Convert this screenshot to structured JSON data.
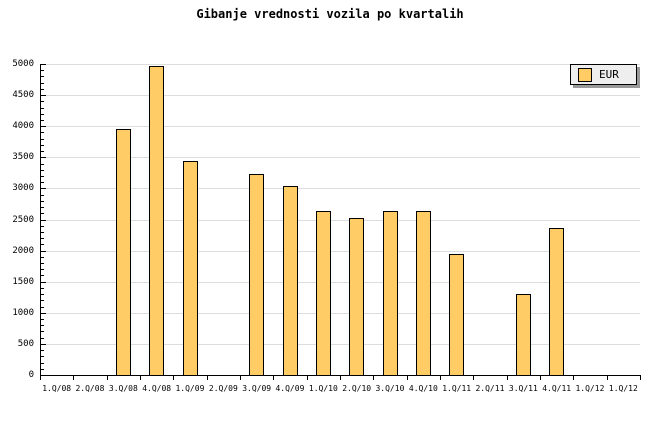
{
  "title": "Gibanje vrednosti vozila po kvartalih",
  "legend": {
    "label": "EUR"
  },
  "colors": {
    "background": "#FFFFFF",
    "bar_fill": "#FFCC66",
    "bar_border": "#000000",
    "gridline": "#DDDDDD",
    "axis": "#000000",
    "legend_bg": "#EEEEEE",
    "legend_shadow": "#999999",
    "text": "#000000"
  },
  "chart_data": {
    "type": "bar",
    "title": "Gibanje vrednosti vozila po kvartalih",
    "categories": [
      "1.Q/08",
      "2.Q/08",
      "3.Q/08",
      "4.Q/08",
      "1.Q/09",
      "2.Q/09",
      "3.Q/09",
      "4.Q/09",
      "1.Q/10",
      "2.Q/10",
      "3.Q/10",
      "4.Q/10",
      "1.Q/11",
      "2.Q/11",
      "3.Q/11",
      "4.Q/11",
      "1.Q/12",
      "1.Q/12"
    ],
    "series": [
      {
        "name": "EUR",
        "values": [
          null,
          null,
          3950,
          4960,
          3440,
          null,
          3230,
          3040,
          2640,
          2520,
          2640,
          2640,
          1950,
          null,
          1300,
          2360,
          null,
          null
        ]
      }
    ],
    "ylim": [
      0,
      5000
    ],
    "y_tick_labels": [
      "0",
      "500",
      "1000",
      "1500",
      "2000",
      "2500",
      "3000",
      "3500",
      "4000",
      "4500",
      "5000"
    ],
    "y_minor_step": 100,
    "grid": true,
    "legend_position": "top-right",
    "xlabel": "",
    "ylabel": ""
  }
}
